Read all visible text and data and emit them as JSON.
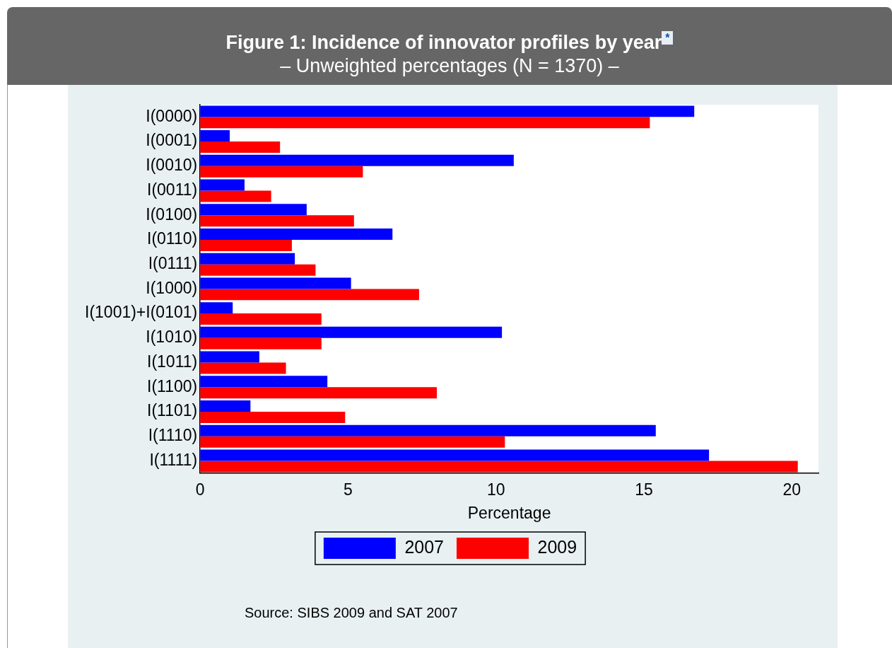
{
  "chart_data": {
    "type": "bar",
    "orientation": "horizontal",
    "title": "Figure 1: Incidence of innovator profiles by year$^{*}$",
    "subtitle": "– Unweighted percentages (N = 1370) –",
    "xlabel": "Percentage",
    "categories": [
      "I(0000)",
      "I(0001)",
      "I(0010)",
      "I(0011)",
      "I(0100)",
      "I(0110)",
      "I(0111)",
      "I(1000)",
      "I(1001)+I(0101)",
      "I(1010)",
      "I(1011)",
      "I(1100)",
      "I(1101)",
      "I(1110)",
      "I(1111)"
    ],
    "series": [
      {
        "name": "2007",
        "color": "#0000ff",
        "values": [
          16.7,
          1.0,
          10.6,
          1.5,
          3.6,
          6.5,
          3.2,
          5.1,
          1.1,
          10.2,
          2.0,
          4.3,
          1.7,
          15.4,
          17.2
        ]
      },
      {
        "name": "2009",
        "color": "#ff0000",
        "values": [
          15.2,
          2.7,
          5.5,
          2.4,
          5.2,
          3.1,
          3.9,
          7.4,
          4.1,
          4.1,
          2.9,
          8.0,
          4.9,
          10.3,
          20.2
        ]
      }
    ],
    "xlim": [
      0,
      20.9
    ],
    "xticks": [
      0,
      5,
      10,
      15,
      20
    ],
    "grid": false,
    "legend": "bottom",
    "annotations": [
      "Source: SIBS 2009 and SAT 2007"
    ]
  }
}
